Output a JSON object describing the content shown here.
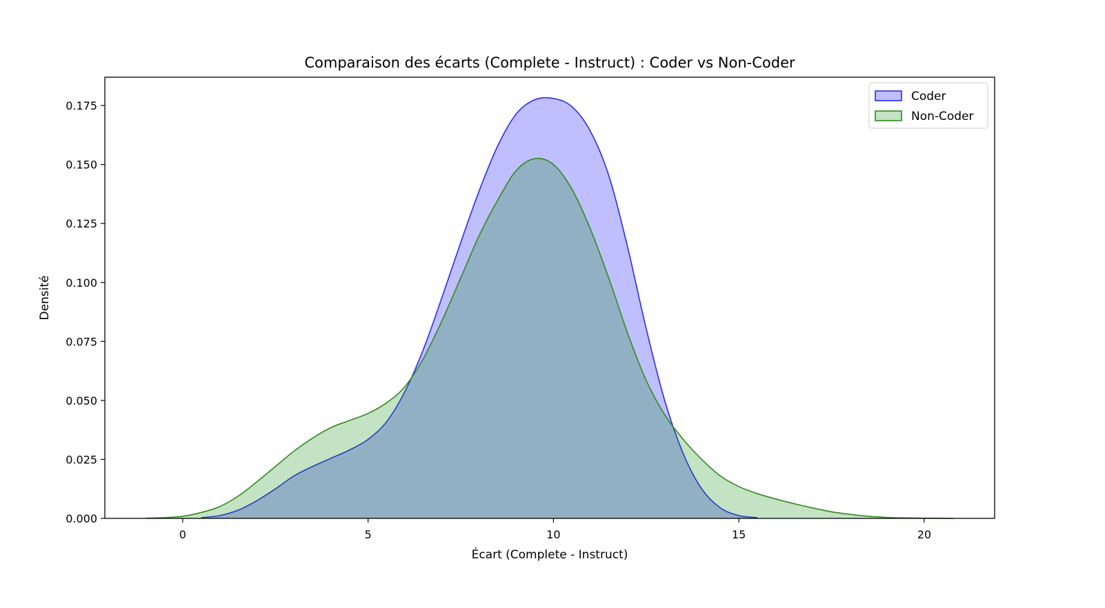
{
  "chart_data": {
    "type": "area",
    "subtype": "kde",
    "title": "Comparaison des écarts (Complete - Instruct) : Coder vs Non-Coder",
    "xlabel": "Écart (Complete - Instruct)",
    "ylabel": "Densité",
    "xlim": [
      -2.1,
      21.9
    ],
    "ylim": [
      0,
      0.187
    ],
    "xticks": [
      0,
      5,
      10,
      15,
      20
    ],
    "xtick_labels": [
      "0",
      "5",
      "10",
      "15",
      "20"
    ],
    "yticks": [
      0,
      0.025,
      0.05,
      0.075,
      0.1,
      0.125,
      0.15,
      0.175
    ],
    "ytick_labels": [
      "0.000",
      "0.025",
      "0.050",
      "0.075",
      "0.100",
      "0.125",
      "0.150",
      "0.175"
    ],
    "grid": false,
    "legend_position": "top-right",
    "series": [
      {
        "name": "Coder",
        "line_color": "#2b2bf0",
        "fill_color": "#0000ff",
        "fill_opacity": 0.25,
        "x": [
          0.5,
          1.0,
          1.5,
          2.0,
          2.5,
          3.0,
          3.5,
          4.0,
          4.5,
          5.0,
          5.5,
          6.0,
          6.5,
          7.0,
          7.5,
          8.0,
          8.5,
          9.0,
          9.5,
          10.0,
          10.5,
          11.0,
          11.5,
          12.0,
          12.5,
          13.0,
          13.5,
          14.0,
          14.5,
          15.0,
          15.5
        ],
        "y": [
          0.0003,
          0.0012,
          0.0035,
          0.0075,
          0.0125,
          0.018,
          0.022,
          0.0255,
          0.029,
          0.0335,
          0.041,
          0.054,
          0.072,
          0.094,
          0.117,
          0.139,
          0.158,
          0.1715,
          0.1775,
          0.178,
          0.1745,
          0.164,
          0.145,
          0.115,
          0.0805,
          0.05,
          0.0275,
          0.0125,
          0.0045,
          0.0012,
          0.0003
        ]
      },
      {
        "name": "Non-Coder",
        "line_color": "#2e8b1a",
        "fill_color": "#008000",
        "fill_opacity": 0.23,
        "x": [
          -1.0,
          -0.5,
          0.0,
          0.5,
          1.0,
          1.5,
          2.0,
          2.5,
          3.0,
          3.5,
          4.0,
          4.5,
          5.0,
          5.5,
          6.0,
          6.5,
          7.0,
          7.5,
          8.0,
          8.5,
          9.0,
          9.5,
          10.0,
          10.5,
          11.0,
          11.5,
          12.0,
          12.5,
          13.0,
          13.5,
          14.0,
          14.5,
          15.0,
          15.5,
          16.0,
          16.5,
          17.0,
          17.5,
          18.0,
          18.5,
          19.0,
          19.5,
          20.0,
          20.5,
          20.8
        ],
        "y": [
          0.0001,
          0.0003,
          0.0009,
          0.0025,
          0.005,
          0.0095,
          0.0155,
          0.022,
          0.0285,
          0.034,
          0.0385,
          0.0415,
          0.0445,
          0.049,
          0.056,
          0.068,
          0.084,
          0.102,
          0.12,
          0.135,
          0.1475,
          0.1525,
          0.15,
          0.1395,
          0.1225,
          0.1015,
          0.0785,
          0.0585,
          0.044,
          0.0335,
          0.025,
          0.018,
          0.0135,
          0.0105,
          0.0082,
          0.0062,
          0.0044,
          0.0028,
          0.0017,
          0.0009,
          0.0004,
          0.0002,
          0.0001,
          5e-05,
          0.0
        ]
      }
    ]
  }
}
